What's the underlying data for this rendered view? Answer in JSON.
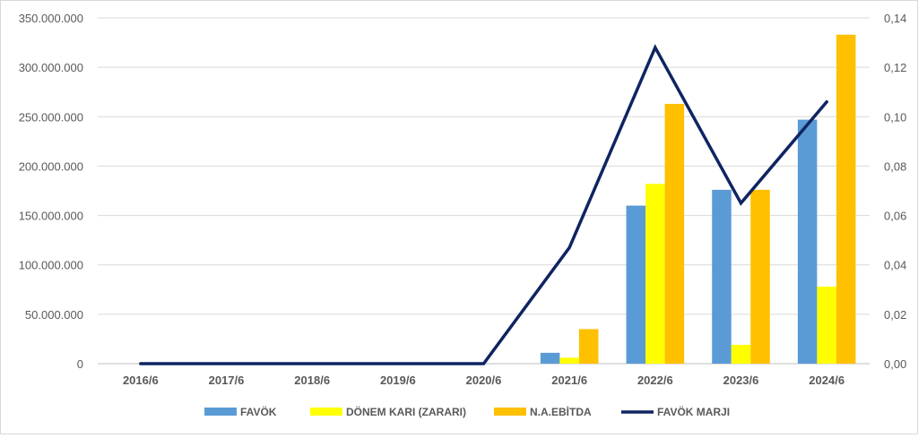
{
  "chart_data": {
    "type": "bar",
    "title": "",
    "xlabel": "",
    "ylabel": "",
    "categories": [
      "2016/6",
      "2017/6",
      "2018/6",
      "2019/6",
      "2020/6",
      "2021/6",
      "2022/6",
      "2023/6",
      "2024/6"
    ],
    "series": [
      {
        "name": "FAVÖK",
        "type": "bar",
        "axis": "left",
        "color": "#5B9BD5",
        "values": [
          0,
          0,
          0,
          0,
          0,
          11000000,
          160000000,
          176000000,
          247000000
        ]
      },
      {
        "name": "DÖNEM KARI (ZARARI)",
        "type": "bar",
        "axis": "left",
        "color": "#FFFF00",
        "values": [
          0,
          0,
          0,
          0,
          0,
          6000000,
          182000000,
          19000000,
          78000000
        ]
      },
      {
        "name": "N.A.EBİTDA",
        "type": "bar",
        "axis": "left",
        "color": "#FFC000",
        "values": [
          0,
          0,
          0,
          0,
          0,
          35000000,
          263000000,
          176000000,
          333000000
        ]
      },
      {
        "name": "FAVÖK MARJI",
        "type": "line",
        "axis": "right",
        "color": "#0F2461",
        "values": [
          0,
          0,
          0,
          0,
          0,
          0.047,
          0.128,
          0.065,
          0.106
        ]
      }
    ],
    "y_left": {
      "ylim": [
        0,
        350000000
      ],
      "ticks": [
        0,
        50000000,
        100000000,
        150000000,
        200000000,
        250000000,
        300000000,
        350000000
      ],
      "tick_labels": [
        "0",
        "50.000.000",
        "100.000.000",
        "150.000.000",
        "200.000.000",
        "250.000.000",
        "300.000.000",
        "350.000.000"
      ]
    },
    "y_right": {
      "ylim": [
        0,
        0.14
      ],
      "ticks": [
        0,
        0.02,
        0.04,
        0.06,
        0.08,
        0.1,
        0.12,
        0.14
      ],
      "tick_labels": [
        "0,00",
        "0,02",
        "0,04",
        "0,06",
        "0,08",
        "0,10",
        "0,12",
        "0,14"
      ]
    },
    "grid": true,
    "legend_position": "bottom"
  }
}
